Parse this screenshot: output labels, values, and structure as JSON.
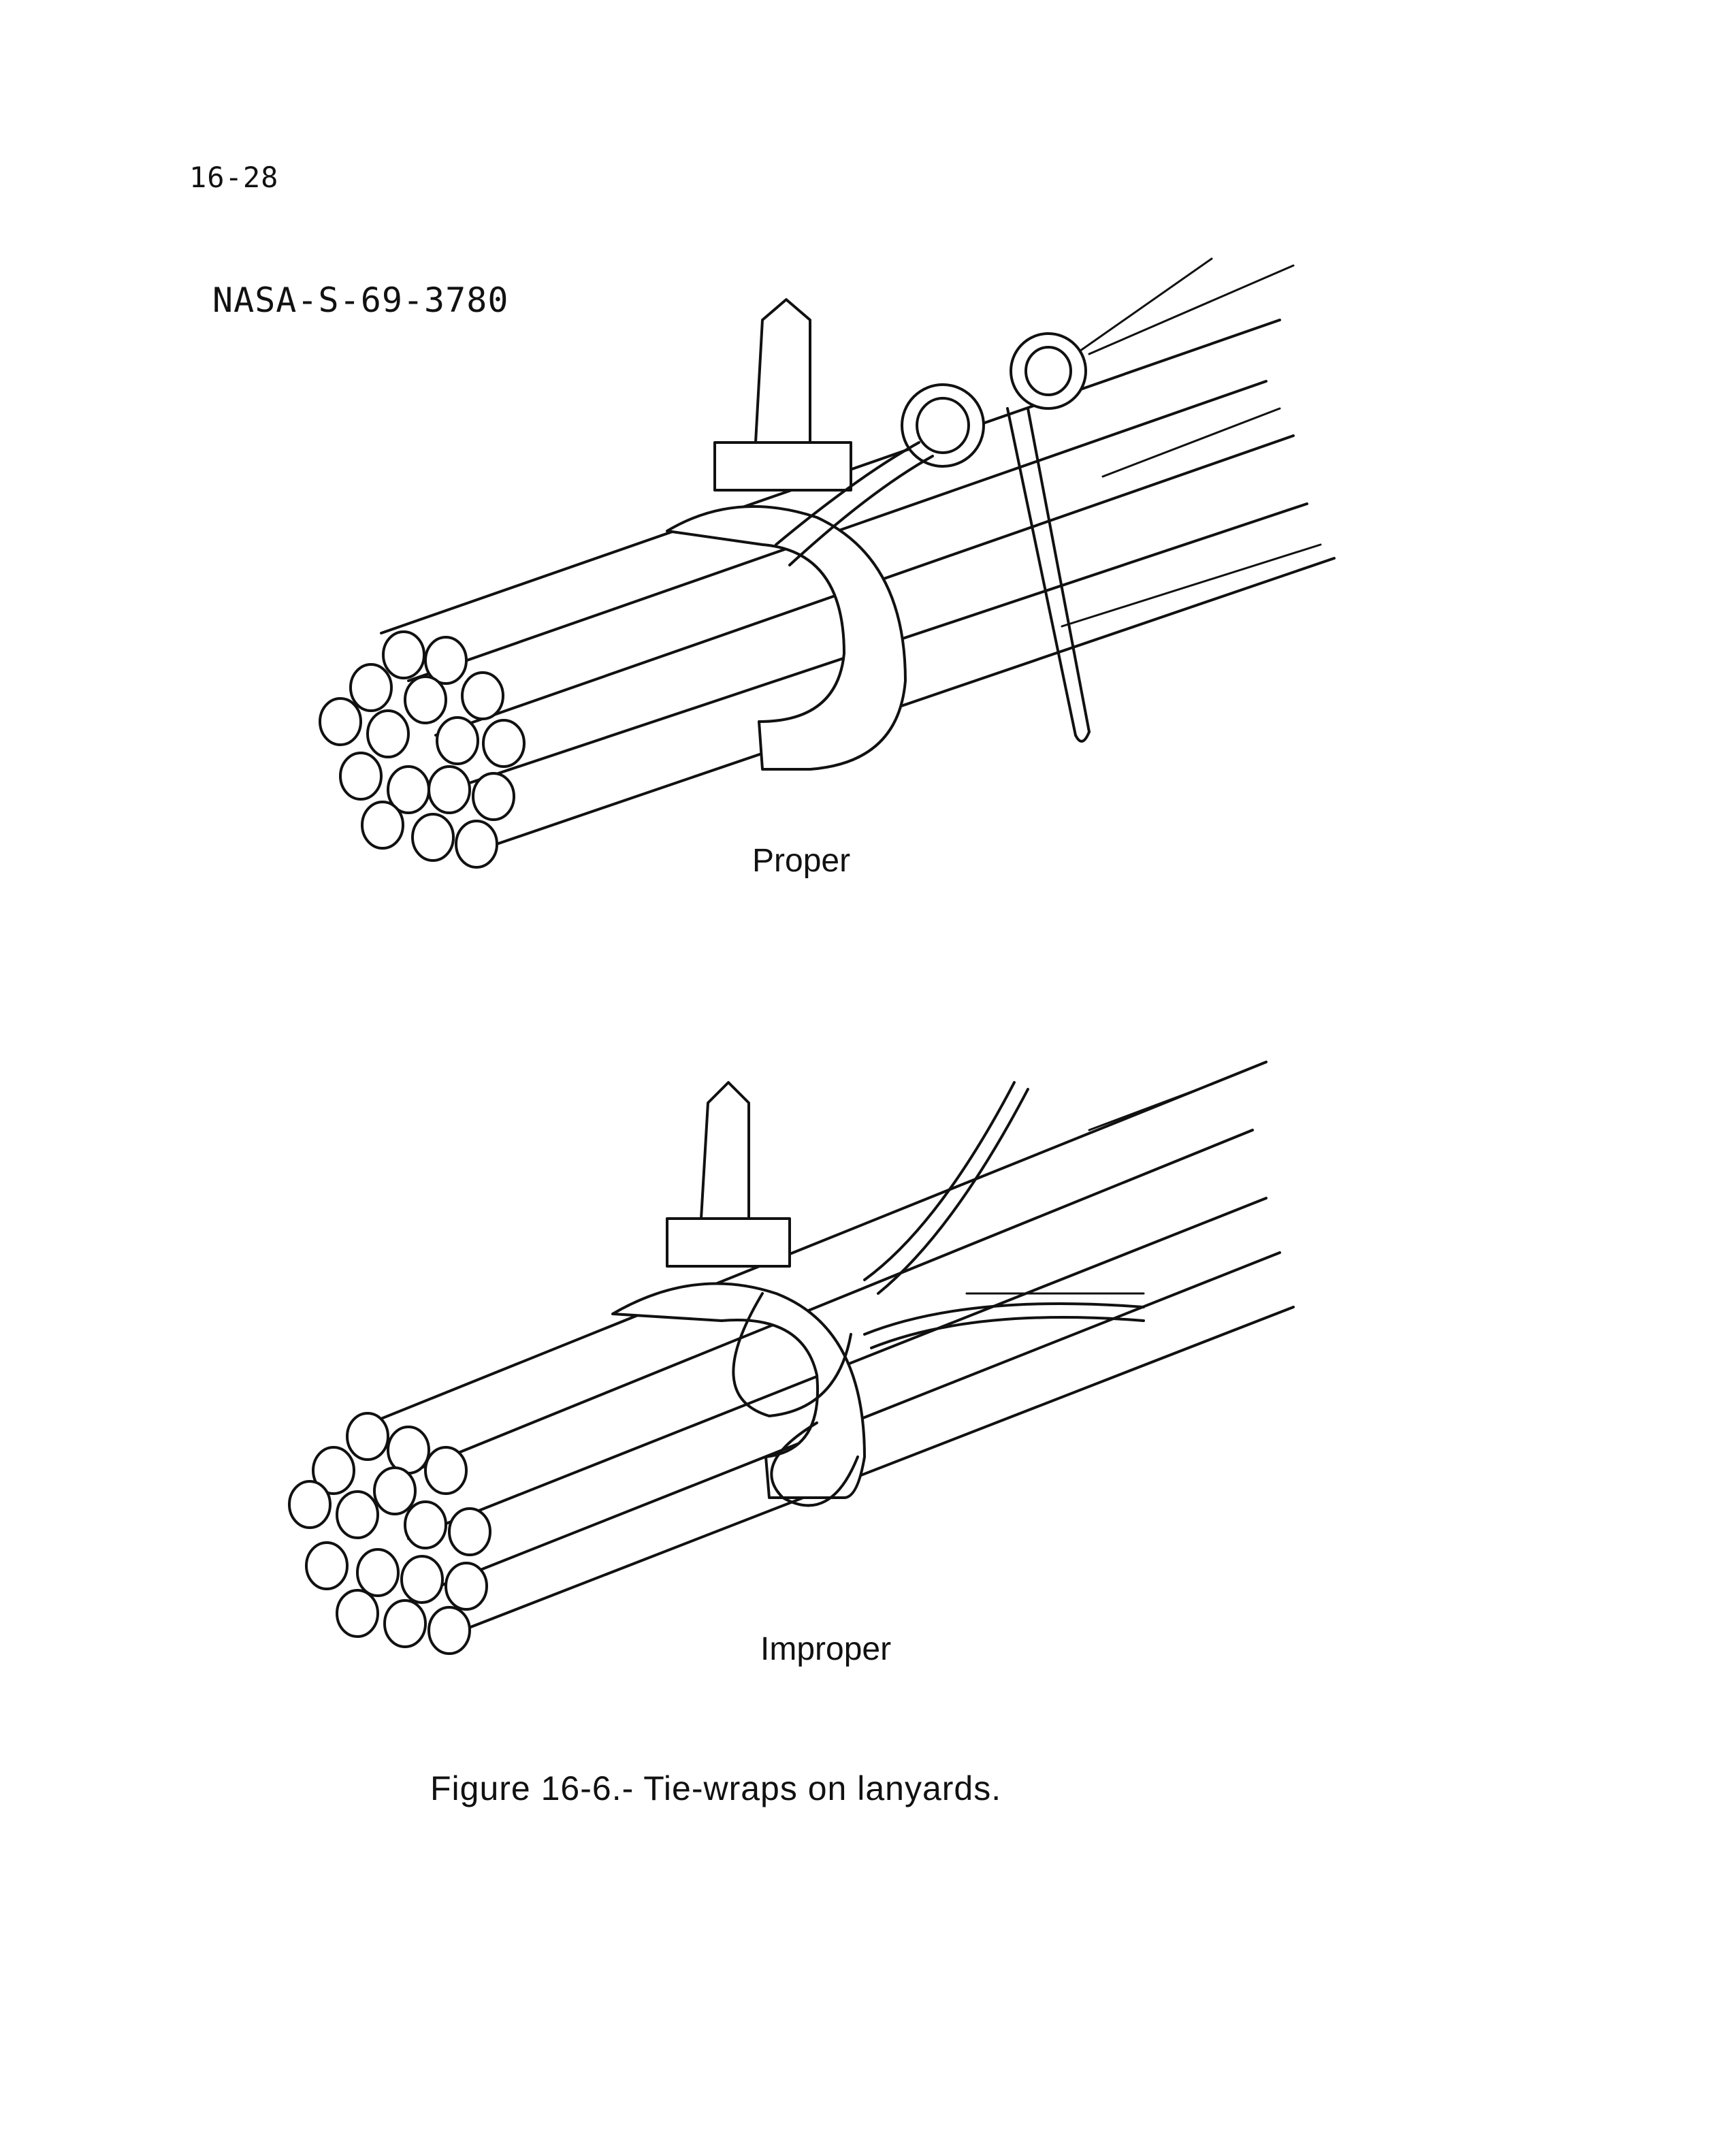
{
  "page": {
    "page_number": "16-28",
    "figure_id": "NASA-S-69-3780",
    "figure_caption": "Figure 16-6.- Tie-wraps on lanyards."
  },
  "illustrations": [
    {
      "label": "Proper"
    },
    {
      "label": "Improper"
    }
  ]
}
